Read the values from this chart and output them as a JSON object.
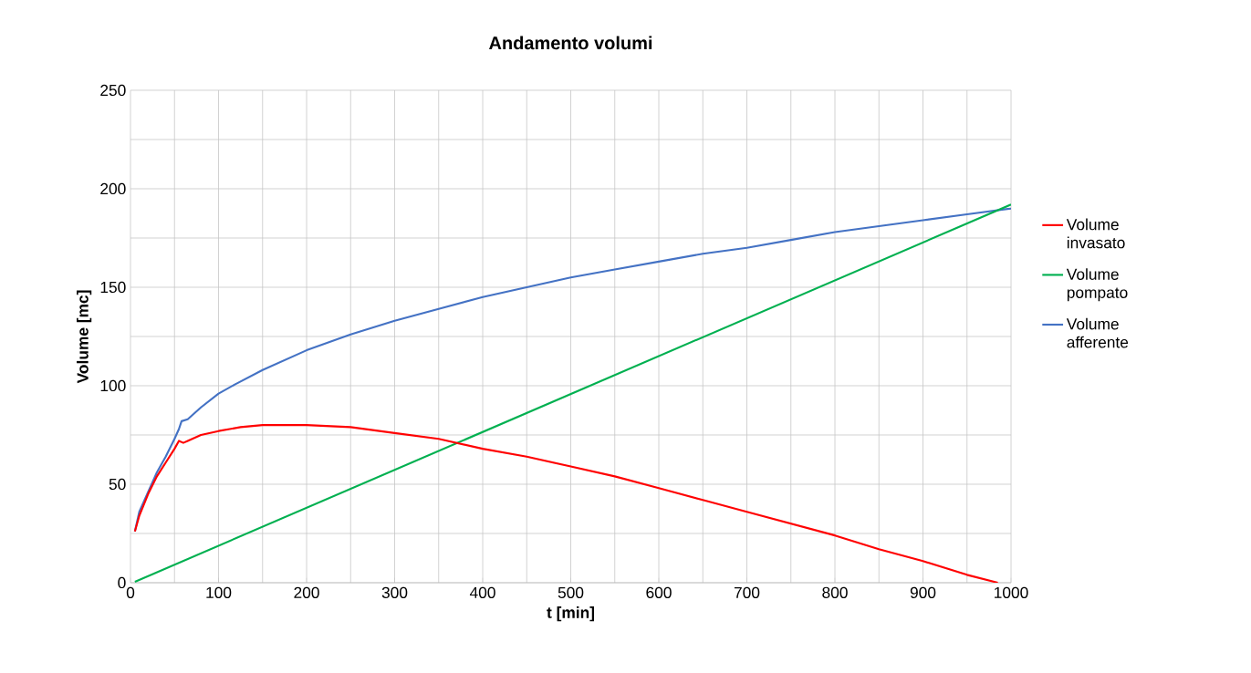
{
  "chart_data": {
    "type": "line",
    "title": "Andamento volumi",
    "xlabel": "t [min]",
    "ylabel": "Volume [mc]",
    "xlim": [
      0,
      1000
    ],
    "xticks": [
      0,
      100,
      200,
      300,
      400,
      500,
      600,
      700,
      800,
      900,
      1000
    ],
    "ylim": [
      0,
      250
    ],
    "yticks": [
      0,
      50,
      100,
      150,
      200,
      250
    ],
    "grid": true,
    "legend": "right",
    "marker": "none",
    "line_style": "solid",
    "series": [
      {
        "name": "Volume invasato",
        "color": "#ff0000",
        "x": [
          5,
          10,
          20,
          30,
          40,
          50,
          55,
          60,
          65,
          80,
          100,
          125,
          150,
          175,
          200,
          250,
          300,
          350,
          400,
          450,
          500,
          550,
          600,
          650,
          700,
          750,
          800,
          850,
          900,
          950,
          985
        ],
        "values": [
          26,
          34,
          45,
          54,
          61,
          68,
          72,
          71,
          72,
          75,
          77,
          79,
          80,
          80,
          80,
          79,
          76,
          73,
          68,
          64,
          59,
          54,
          48,
          42,
          36,
          30,
          24,
          17,
          11,
          4,
          0
        ]
      },
      {
        "name": "Volume pompato",
        "color": "#00b050",
        "x": [
          5,
          1000
        ],
        "values": [
          0.5,
          192
        ]
      },
      {
        "name": "Volume afferente",
        "color": "#4472c4",
        "x": [
          5,
          10,
          20,
          30,
          40,
          50,
          55,
          58,
          65,
          80,
          100,
          120,
          150,
          200,
          250,
          300,
          350,
          400,
          450,
          500,
          550,
          600,
          650,
          700,
          750,
          800,
          850,
          900,
          950,
          1000
        ],
        "values": [
          26,
          36,
          46,
          56,
          64,
          73,
          78,
          82,
          83,
          89,
          96,
          101,
          108,
          118,
          126,
          133,
          139,
          145,
          150,
          155,
          159,
          163,
          167,
          170,
          174,
          178,
          181,
          184,
          187,
          190
        ]
      }
    ]
  }
}
